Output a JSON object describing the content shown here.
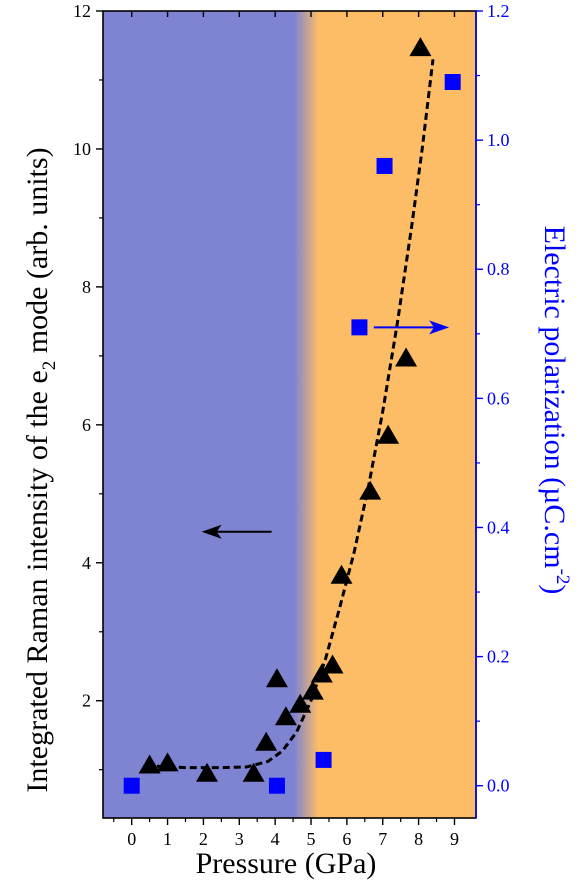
{
  "chart_data": {
    "type": "scatter",
    "x": {
      "label": "Pressure (GPa)",
      "range": [
        -0.8,
        9.6
      ],
      "ticks": [
        0,
        1,
        2,
        3,
        4,
        5,
        6,
        7,
        8,
        9
      ],
      "tick_labels": [
        "0",
        "1",
        "2",
        "3",
        "4",
        "5",
        "6",
        "7",
        "8",
        "9"
      ]
    },
    "y_left": {
      "label_parts": [
        "Integrated Raman intensity of the e",
        "2",
        " mode (arb. units)"
      ],
      "range": [
        0.3,
        12
      ],
      "ticks": [
        2,
        4,
        6,
        8,
        10,
        12
      ],
      "tick_labels": [
        "2",
        "4",
        "6",
        "8",
        "10",
        "12"
      ]
    },
    "y_right": {
      "label_parts": [
        "Electric polarization (µC.cm",
        "-2",
        ")"
      ],
      "range": [
        -0.05,
        1.2
      ],
      "ticks": [
        0.0,
        0.2,
        0.4,
        0.6,
        0.8,
        1.0,
        1.2
      ],
      "tick_labels": [
        "0.0",
        "0.2",
        "0.4",
        "0.6",
        "0.8",
        "1.0",
        "1.2"
      ],
      "color": "#0000ff"
    },
    "background_regions": [
      {
        "from": -0.8,
        "to": 5.0,
        "color": "#7f84d2"
      },
      {
        "from": 5.0,
        "to": 9.6,
        "color": "#fcbd66"
      }
    ],
    "series": [
      {
        "axis": "left",
        "marker": "triangle",
        "color": "#000000",
        "points": [
          [
            0.5,
            1.05
          ],
          [
            1.0,
            1.08
          ],
          [
            2.1,
            0.93
          ],
          [
            3.4,
            0.93
          ],
          [
            3.75,
            1.38
          ],
          [
            4.05,
            2.3
          ],
          [
            4.3,
            1.75
          ],
          [
            4.7,
            1.93
          ],
          [
            5.05,
            2.12
          ],
          [
            5.3,
            2.37
          ],
          [
            5.6,
            2.5
          ],
          [
            5.85,
            3.8
          ],
          [
            6.65,
            5.02
          ],
          [
            7.15,
            5.83
          ],
          [
            7.65,
            6.95
          ],
          [
            8.05,
            11.45
          ]
        ]
      },
      {
        "axis": "right",
        "marker": "square",
        "color": "#0000ff",
        "points": [
          [
            0.0,
            0.0
          ],
          [
            4.05,
            0.0
          ],
          [
            5.35,
            0.04
          ],
          [
            6.35,
            0.71
          ],
          [
            7.05,
            0.96
          ],
          [
            8.95,
            1.09
          ]
        ]
      }
    ],
    "fit_curve": {
      "axis": "left",
      "style": "dashed",
      "color": "#000000",
      "points": [
        [
          0.7,
          1.05
        ],
        [
          1.5,
          1.03
        ],
        [
          2.5,
          1.03
        ],
        [
          3.2,
          1.04
        ],
        [
          3.8,
          1.12
        ],
        [
          4.2,
          1.27
        ],
        [
          4.6,
          1.55
        ],
        [
          5.0,
          2.0
        ],
        [
          5.4,
          2.6
        ],
        [
          5.8,
          3.35
        ],
        [
          6.2,
          4.15
        ],
        [
          6.6,
          5.1
        ],
        [
          7.0,
          6.2
        ],
        [
          7.4,
          7.45
        ],
        [
          7.8,
          8.85
        ],
        [
          8.1,
          10.0
        ],
        [
          8.4,
          11.3
        ]
      ]
    },
    "annotations": [
      {
        "type": "arrow",
        "direction": "left",
        "axis": "left",
        "from": [
          3.9,
          4.45
        ],
        "to": [
          1.95,
          4.45
        ],
        "color": "#000000"
      },
      {
        "type": "arrow",
        "direction": "right",
        "axis": "right",
        "from": [
          6.75,
          0.71
        ],
        "to": [
          8.85,
          0.71
        ],
        "color": "#0000ff"
      }
    ]
  }
}
